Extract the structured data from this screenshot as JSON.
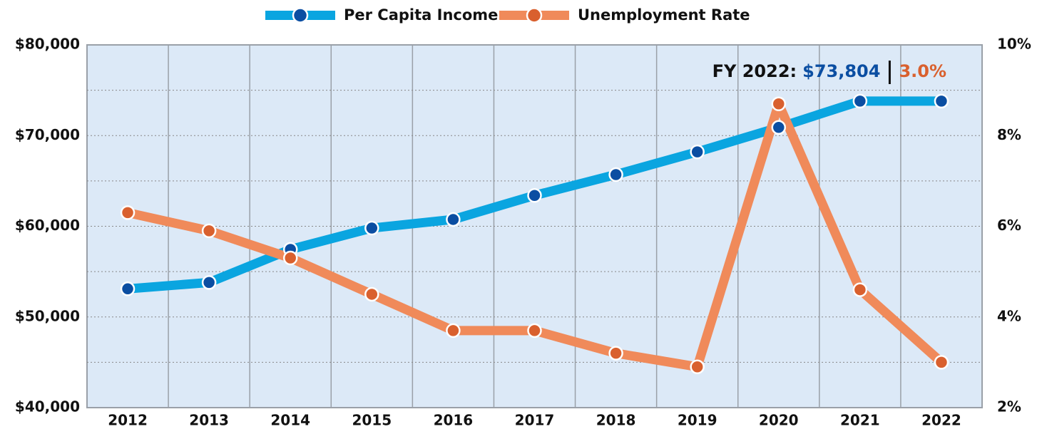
{
  "chart_data": {
    "type": "line",
    "categories": [
      "2012",
      "2013",
      "2014",
      "2015",
      "2016",
      "2017",
      "2018",
      "2019",
      "2020",
      "2021",
      "2022"
    ],
    "series": [
      {
        "name": "Per Capita Income",
        "color": "#0aa5e0",
        "marker_color": "#0b4ea2",
        "axis": "y",
        "values": [
          53100,
          53800,
          57450,
          59800,
          60750,
          63400,
          65700,
          68200,
          70900,
          73800,
          73804
        ]
      },
      {
        "name": "Unemployment Rate",
        "color": "#f08a5a",
        "marker_color": "#d9602e",
        "axis": "y2",
        "values": [
          6.3,
          5.9,
          5.3,
          4.5,
          3.7,
          3.7,
          3.2,
          2.9,
          8.7,
          4.6,
          3.0
        ]
      }
    ],
    "ylim": [
      40000,
      80000
    ],
    "yticks": [
      {
        "value": 40000,
        "label": "$40,000"
      },
      {
        "value": 50000,
        "label": "$50,000"
      },
      {
        "value": 60000,
        "label": "$60,000"
      },
      {
        "value": 70000,
        "label": "$70,000"
      },
      {
        "value": 80000,
        "label": "$80,000"
      }
    ],
    "minor_yticks": [
      45000,
      55000,
      65000,
      75000
    ],
    "y2lim": [
      2,
      10
    ],
    "y2ticks": [
      {
        "value": 2,
        "label": "2%"
      },
      {
        "value": 4,
        "label": "4%"
      },
      {
        "value": 6,
        "label": "6%"
      },
      {
        "value": 8,
        "label": "8%"
      },
      {
        "value": 10,
        "label": "10%"
      }
    ],
    "grid": true,
    "legend": "top",
    "annotation": {
      "label": "FY 2022:",
      "income": "$73,804",
      "rate": "3.0%"
    }
  }
}
